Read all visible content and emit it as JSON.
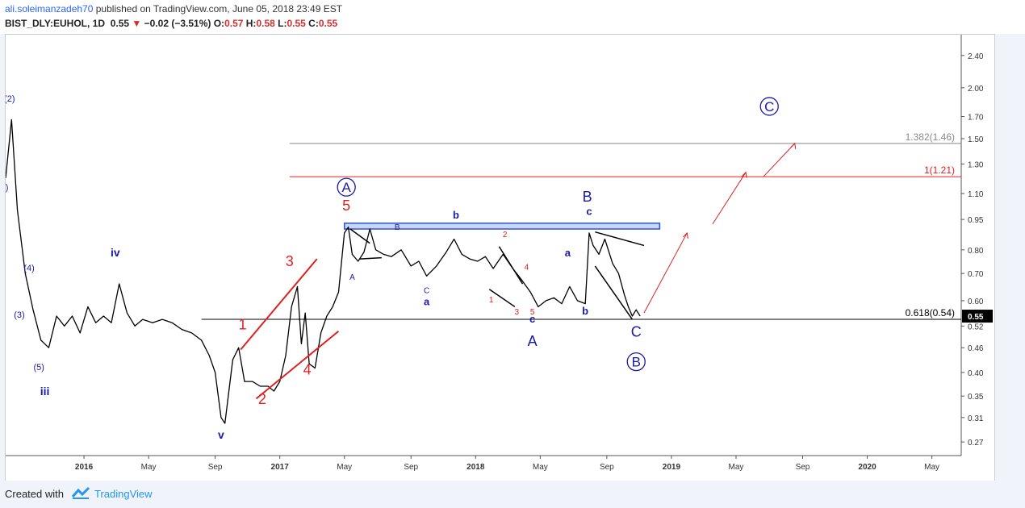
{
  "header": {
    "author": "ali.soleimanzadeh70",
    "published": "published on TradingView.com, June 05, 2018 23:49 EST",
    "symbol": "BIST_DLY:EUHOL, 1D",
    "last": "0.55",
    "change": "−0.02 (−3.51%)",
    "o_label": "O:",
    "o_value": "0.57",
    "h_label": "H:",
    "h_value": "0.58",
    "l_label": "L:",
    "l_value": "0.55",
    "c_label": "C:",
    "c_value": "0.55"
  },
  "footer": {
    "created": "Created with",
    "brand": "TradingView"
  },
  "colors": {
    "red": "#e02020",
    "blue": "#1a1aa8",
    "drawing_blue": "#2a56d6",
    "grey_line": "#888888",
    "price_tag_bg": "#000000"
  },
  "chart_data": {
    "type": "line",
    "scale": "log",
    "ylim": [
      0.25,
      2.7
    ],
    "price_ticks": [
      "2.40",
      "2.00",
      "1.70",
      "1.50",
      "1.30",
      "1.10",
      "0.95",
      "0.80",
      "0.70",
      "0.60",
      "0.52",
      "0.46",
      "0.40",
      "0.35",
      "0.31",
      "0.27"
    ],
    "time_ticks": [
      "2016",
      "May",
      "Sep",
      "2017",
      "May",
      "Sep",
      "2018",
      "May",
      "Sep",
      "2019",
      "May",
      "Sep",
      "2020",
      "May"
    ],
    "last_price_tag": "0.55",
    "series": [
      {
        "values": [
          [
            2015.6,
            1.2
          ],
          [
            2015.63,
            1.67
          ],
          [
            2015.66,
            1.0
          ],
          [
            2015.7,
            0.7
          ],
          [
            2015.74,
            0.57
          ],
          [
            2015.78,
            0.48
          ],
          [
            2015.82,
            0.46
          ],
          [
            2015.86,
            0.55
          ],
          [
            2015.9,
            0.52
          ],
          [
            2015.94,
            0.55
          ],
          [
            2015.98,
            0.5
          ],
          [
            2016.02,
            0.58
          ],
          [
            2016.06,
            0.53
          ],
          [
            2016.1,
            0.55
          ],
          [
            2016.14,
            0.53
          ],
          [
            2016.18,
            0.66
          ],
          [
            2016.22,
            0.56
          ],
          [
            2016.26,
            0.52
          ],
          [
            2016.3,
            0.54
          ],
          [
            2016.35,
            0.53
          ],
          [
            2016.4,
            0.54
          ],
          [
            2016.45,
            0.53
          ],
          [
            2016.5,
            0.51
          ],
          [
            2016.55,
            0.5
          ],
          [
            2016.6,
            0.48
          ],
          [
            2016.64,
            0.44
          ],
          [
            2016.67,
            0.4
          ],
          [
            2016.7,
            0.31
          ],
          [
            2016.72,
            0.3
          ],
          [
            2016.74,
            0.36
          ],
          [
            2016.76,
            0.43
          ],
          [
            2016.79,
            0.46
          ],
          [
            2016.82,
            0.38
          ],
          [
            2016.86,
            0.38
          ],
          [
            2016.9,
            0.37
          ],
          [
            2016.94,
            0.37
          ],
          [
            2016.97,
            0.36
          ],
          [
            2017.0,
            0.38
          ],
          [
            2017.03,
            0.44
          ],
          [
            2017.06,
            0.58
          ],
          [
            2017.09,
            0.65
          ],
          [
            2017.11,
            0.47
          ],
          [
            2017.13,
            0.56
          ],
          [
            2017.15,
            0.42
          ],
          [
            2017.18,
            0.41
          ],
          [
            2017.21,
            0.5
          ],
          [
            2017.24,
            0.55
          ],
          [
            2017.27,
            0.58
          ],
          [
            2017.3,
            0.63
          ],
          [
            2017.33,
            0.88
          ],
          [
            2017.35,
            0.91
          ],
          [
            2017.37,
            0.78
          ],
          [
            2017.4,
            0.75
          ],
          [
            2017.43,
            0.79
          ],
          [
            2017.46,
            0.9
          ],
          [
            2017.49,
            0.8
          ],
          [
            2017.53,
            0.78
          ],
          [
            2017.57,
            0.77
          ],
          [
            2017.62,
            0.8
          ],
          [
            2017.67,
            0.73
          ],
          [
            2017.71,
            0.75
          ],
          [
            2017.75,
            0.69
          ],
          [
            2017.8,
            0.73
          ],
          [
            2017.85,
            0.79
          ],
          [
            2017.89,
            0.85
          ],
          [
            2017.93,
            0.78
          ],
          [
            2017.97,
            0.76
          ],
          [
            2018.01,
            0.75
          ],
          [
            2018.05,
            0.77
          ],
          [
            2018.09,
            0.72
          ],
          [
            2018.14,
            0.78
          ],
          [
            2018.19,
            0.72
          ],
          [
            2018.24,
            0.67
          ],
          [
            2018.28,
            0.63
          ],
          [
            2018.32,
            0.58
          ],
          [
            2018.36,
            0.6
          ],
          [
            2018.4,
            0.61
          ],
          [
            2018.44,
            0.59
          ],
          [
            2018.48,
            0.65
          ],
          [
            2018.52,
            0.6
          ],
          [
            2018.56,
            0.59
          ],
          [
            2018.58,
            0.88
          ],
          [
            2018.6,
            0.82
          ],
          [
            2018.63,
            0.78
          ],
          [
            2018.66,
            0.85
          ],
          [
            2018.7,
            0.74
          ],
          [
            2018.73,
            0.7
          ],
          [
            2018.76,
            0.62
          ],
          [
            2018.78,
            0.58
          ],
          [
            2018.8,
            0.55
          ],
          [
            2018.82,
            0.57
          ],
          [
            2018.84,
            0.55
          ]
        ]
      }
    ],
    "annotations": {
      "wave_labels": [
        {
          "text": "(2)",
          "x": 2015.62,
          "y": 1.85,
          "color": "blue",
          "size": 11
        },
        {
          "text": "I)",
          "x": 2015.6,
          "y": 1.12,
          "color": "blue",
          "size": 11
        },
        {
          "text": "(4)",
          "x": 2015.72,
          "y": 0.71,
          "color": "blue",
          "size": 11
        },
        {
          "text": "(3)",
          "x": 2015.67,
          "y": 0.545,
          "color": "blue",
          "size": 11
        },
        {
          "text": "(5)",
          "x": 2015.77,
          "y": 0.405,
          "color": "blue",
          "size": 11
        },
        {
          "text": "iii",
          "x": 2015.8,
          "y": 0.352,
          "color": "blue",
          "size": 14,
          "bold": true
        },
        {
          "text": "iv",
          "x": 2016.16,
          "y": 0.77,
          "color": "blue",
          "size": 14,
          "bold": true
        },
        {
          "text": "v",
          "x": 2016.7,
          "y": 0.275,
          "color": "blue",
          "size": 14,
          "bold": true
        },
        {
          "text": "1",
          "x": 2016.81,
          "y": 0.51,
          "color": "red",
          "size": 18
        },
        {
          "text": "2",
          "x": 2016.91,
          "y": 0.335,
          "color": "red",
          "size": 18
        },
        {
          "text": "3",
          "x": 2017.05,
          "y": 0.73,
          "color": "red",
          "size": 18
        },
        {
          "text": "4",
          "x": 2017.14,
          "y": 0.395,
          "color": "red",
          "size": 18
        },
        {
          "text": "5",
          "x": 2017.34,
          "y": 1.0,
          "color": "red",
          "size": 18
        },
        {
          "text": "A",
          "x": 2017.37,
          "y": 0.675,
          "color": "blue",
          "size": 10
        },
        {
          "text": "B",
          "x": 2017.6,
          "y": 0.895,
          "color": "blue",
          "size": 10
        },
        {
          "text": "C",
          "x": 2017.75,
          "y": 0.627,
          "color": "blue",
          "size": 10
        },
        {
          "text": "a",
          "x": 2017.75,
          "y": 0.585,
          "color": "blue",
          "size": 13,
          "bold": true
        },
        {
          "text": "b",
          "x": 2017.9,
          "y": 0.955,
          "color": "blue",
          "size": 13,
          "bold": true
        },
        {
          "text": "1",
          "x": 2018.08,
          "y": 0.595,
          "color": "red",
          "size": 10
        },
        {
          "text": "2",
          "x": 2018.15,
          "y": 0.86,
          "color": "red",
          "size": 10
        },
        {
          "text": "3",
          "x": 2018.21,
          "y": 0.555,
          "color": "red",
          "size": 10
        },
        {
          "text": "4",
          "x": 2018.26,
          "y": 0.715,
          "color": "red",
          "size": 10
        },
        {
          "text": "5",
          "x": 2018.29,
          "y": 0.555,
          "color": "red",
          "size": 10
        },
        {
          "text": "c",
          "x": 2018.29,
          "y": 0.53,
          "color": "blue",
          "size": 13,
          "bold": true
        },
        {
          "text": "A",
          "x": 2018.29,
          "y": 0.465,
          "color": "blue",
          "size": 18
        },
        {
          "text": "a",
          "x": 2018.47,
          "y": 0.77,
          "color": "blue",
          "size": 13,
          "bold": true
        },
        {
          "text": "b",
          "x": 2018.56,
          "y": 0.555,
          "color": "blue",
          "size": 13,
          "bold": true
        },
        {
          "text": "B",
          "x": 2018.57,
          "y": 1.05,
          "color": "blue",
          "size": 18
        },
        {
          "text": "c",
          "x": 2018.58,
          "y": 0.975,
          "color": "blue",
          "size": 13,
          "bold": true
        },
        {
          "text": "C",
          "x": 2018.82,
          "y": 0.49,
          "color": "blue",
          "size": 18
        }
      ],
      "circled_labels": [
        {
          "text": "A",
          "x": 2017.34,
          "y": 1.14,
          "color": "blue"
        },
        {
          "text": "B",
          "x": 2018.82,
          "y": 0.425,
          "color": "blue"
        },
        {
          "text": "C",
          "x": 2019.5,
          "y": 1.8,
          "color": "blue"
        }
      ],
      "levels": [
        {
          "label": "1.382(1.46)",
          "price": 1.46,
          "from": 2017.05,
          "color": "grey"
        },
        {
          "label": "1(1.21)",
          "price": 1.21,
          "from": 2017.05,
          "color": "red"
        },
        {
          "label": "0.618(0.54)",
          "price": 0.54,
          "from": 2016.6,
          "color": "black"
        }
      ]
    }
  }
}
